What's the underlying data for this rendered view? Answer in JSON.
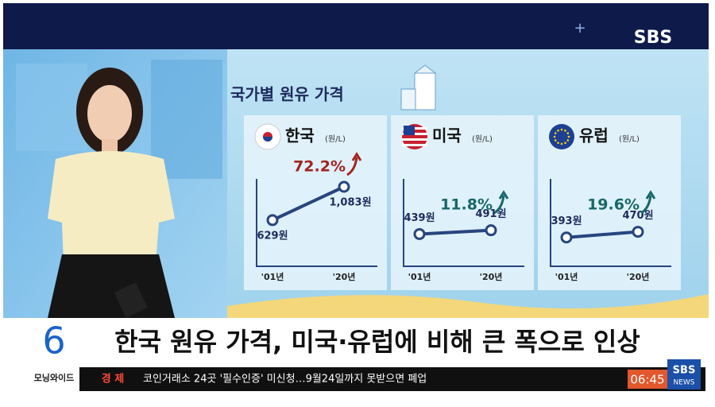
{
  "broadcast": {
    "logo": "SBS",
    "panel_title": "국가별 원유 가격",
    "headline": "한국 원유 가격, 미국·유럽에 비해 큰 폭으로 인상",
    "program_number": "6",
    "program_name": "모닝와이드",
    "ticker_section": "경 제",
    "ticker_text": "코인거래소 24곳 '필수인증' 미신청…9월24일까지 못받으면 폐업",
    "clock": "06:45",
    "corner_logo_top": "SBS",
    "corner_logo_bottom": "NEWS"
  },
  "chart_data": [
    {
      "type": "line",
      "title": "한국",
      "unit": "(원/L)",
      "categories": [
        "'01년",
        "'20년"
      ],
      "values": [
        629,
        1083
      ],
      "value_labels": [
        "629원",
        "1,083원"
      ],
      "annotation": "72.2%",
      "color": "#27457e",
      "annotation_color": "#a3241f"
    },
    {
      "type": "line",
      "title": "미국",
      "unit": "(원/L)",
      "categories": [
        "'01년",
        "'20년"
      ],
      "values": [
        439,
        491
      ],
      "value_labels": [
        "439원",
        "491원"
      ],
      "annotation": "11.8%",
      "color": "#27457e",
      "annotation_color": "#17686a"
    },
    {
      "type": "line",
      "title": "유럽",
      "unit": "(원/L)",
      "categories": [
        "'01년",
        "'20년"
      ],
      "values": [
        393,
        470
      ],
      "value_labels": [
        "393원",
        "470원"
      ],
      "annotation": "19.6%",
      "color": "#27457e",
      "annotation_color": "#17686a"
    }
  ]
}
